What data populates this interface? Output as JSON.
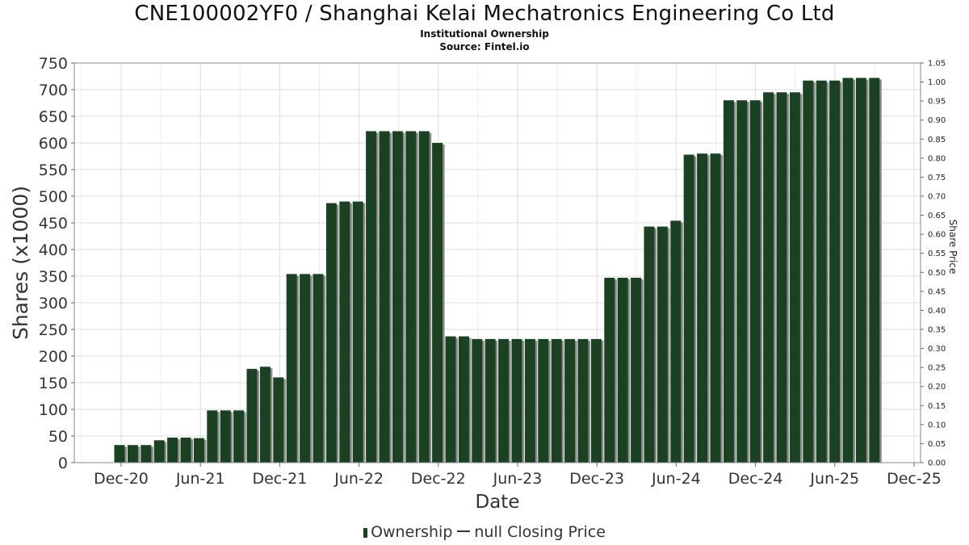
{
  "header": {
    "title": "CNE100002YF0 / Shanghai Kelai Mechatronics Engineering Co Ltd",
    "subtitle": "Institutional Ownership",
    "source": "Source: Fintel.io"
  },
  "legend": {
    "ownership": "Ownership",
    "price": "null Closing Price"
  },
  "colors": {
    "bar": "#1a4222",
    "bar_shadow": "#8a8a8a",
    "grid": "#dcdcdc"
  },
  "chart_data": {
    "type": "bar",
    "xlabel": "Date",
    "ylabel": "Shares (x1000)",
    "y2label": "Share Price",
    "ylim": [
      0,
      750
    ],
    "y2lim": [
      0,
      1.05
    ],
    "yticks": [
      "0",
      "50",
      "100",
      "150",
      "200",
      "250",
      "300",
      "350",
      "400",
      "450",
      "500",
      "550",
      "600",
      "650",
      "700",
      "750"
    ],
    "y2ticks": [
      "0.00",
      "0.05",
      "0.10",
      "0.15",
      "0.20",
      "0.25",
      "0.30",
      "0.35",
      "0.40",
      "0.45",
      "0.50",
      "0.55",
      "0.60",
      "0.65",
      "0.70",
      "0.75",
      "0.80",
      "0.85",
      "0.90",
      "0.95",
      "1.00",
      "1.05"
    ],
    "xticks": [
      "Dec-20",
      "Jun-21",
      "Dec-21",
      "Jun-22",
      "Dec-22",
      "Jun-23",
      "Dec-23",
      "Jun-24",
      "Dec-24",
      "Jun-25",
      "Dec-25"
    ],
    "grid": true,
    "legend_position": "bottom",
    "series": [
      {
        "name": "Ownership",
        "values": [
          33,
          33,
          33,
          42,
          47,
          47,
          46,
          98,
          98,
          98,
          176,
          180,
          160,
          354,
          354,
          354,
          487,
          490,
          490,
          622,
          622,
          622,
          622,
          622,
          600,
          237,
          237,
          232,
          232,
          232,
          232,
          232,
          232,
          232,
          232,
          232,
          232,
          347,
          347,
          347,
          443,
          443,
          454,
          578,
          580,
          580,
          680,
          680,
          680,
          695,
          695,
          695,
          717,
          717,
          717,
          722,
          722,
          722
        ]
      }
    ]
  }
}
